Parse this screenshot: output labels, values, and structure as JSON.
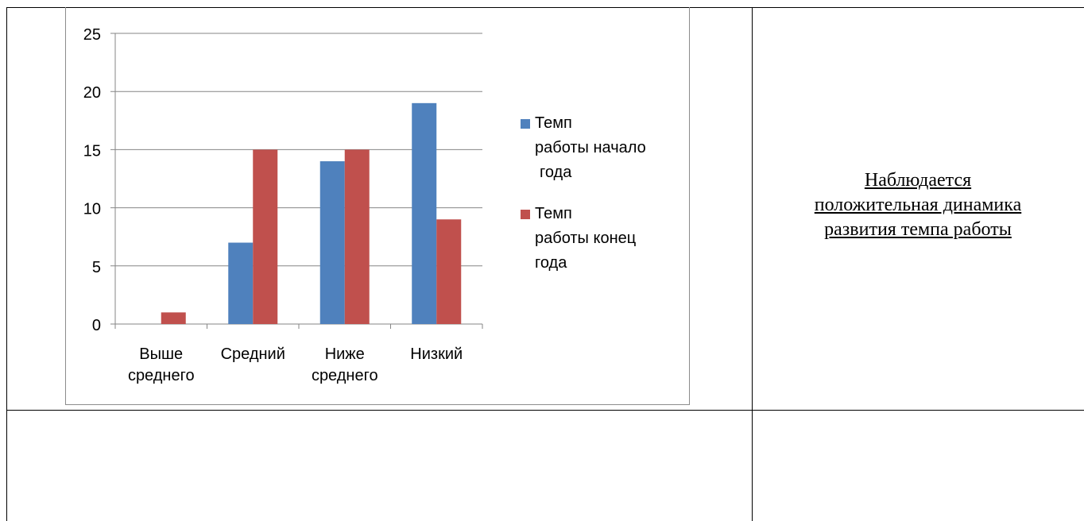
{
  "chart_data": {
    "type": "bar",
    "categories": [
      [
        "Выше",
        "среднего"
      ],
      [
        "Средний"
      ],
      [
        "Ниже",
        "среднего"
      ],
      [
        "Низкий"
      ]
    ],
    "series": [
      {
        "name": [
          "Темп",
          "работы начало",
          "года"
        ],
        "color": "#4f81bd",
        "values": [
          0,
          7,
          14,
          19
        ]
      },
      {
        "name": [
          "Темп",
          "работы конец",
          "года"
        ],
        "color": "#c0504d",
        "values": [
          1,
          15,
          15,
          9
        ]
      }
    ],
    "ylim": [
      0,
      25
    ],
    "yticks": [
      "0",
      "5",
      "10",
      "15",
      "20",
      "25"
    ],
    "grid": true,
    "legend": "right"
  },
  "note": {
    "lines": [
      "Наблюдается",
      "положительная динамика",
      "развития темпа работы"
    ]
  }
}
